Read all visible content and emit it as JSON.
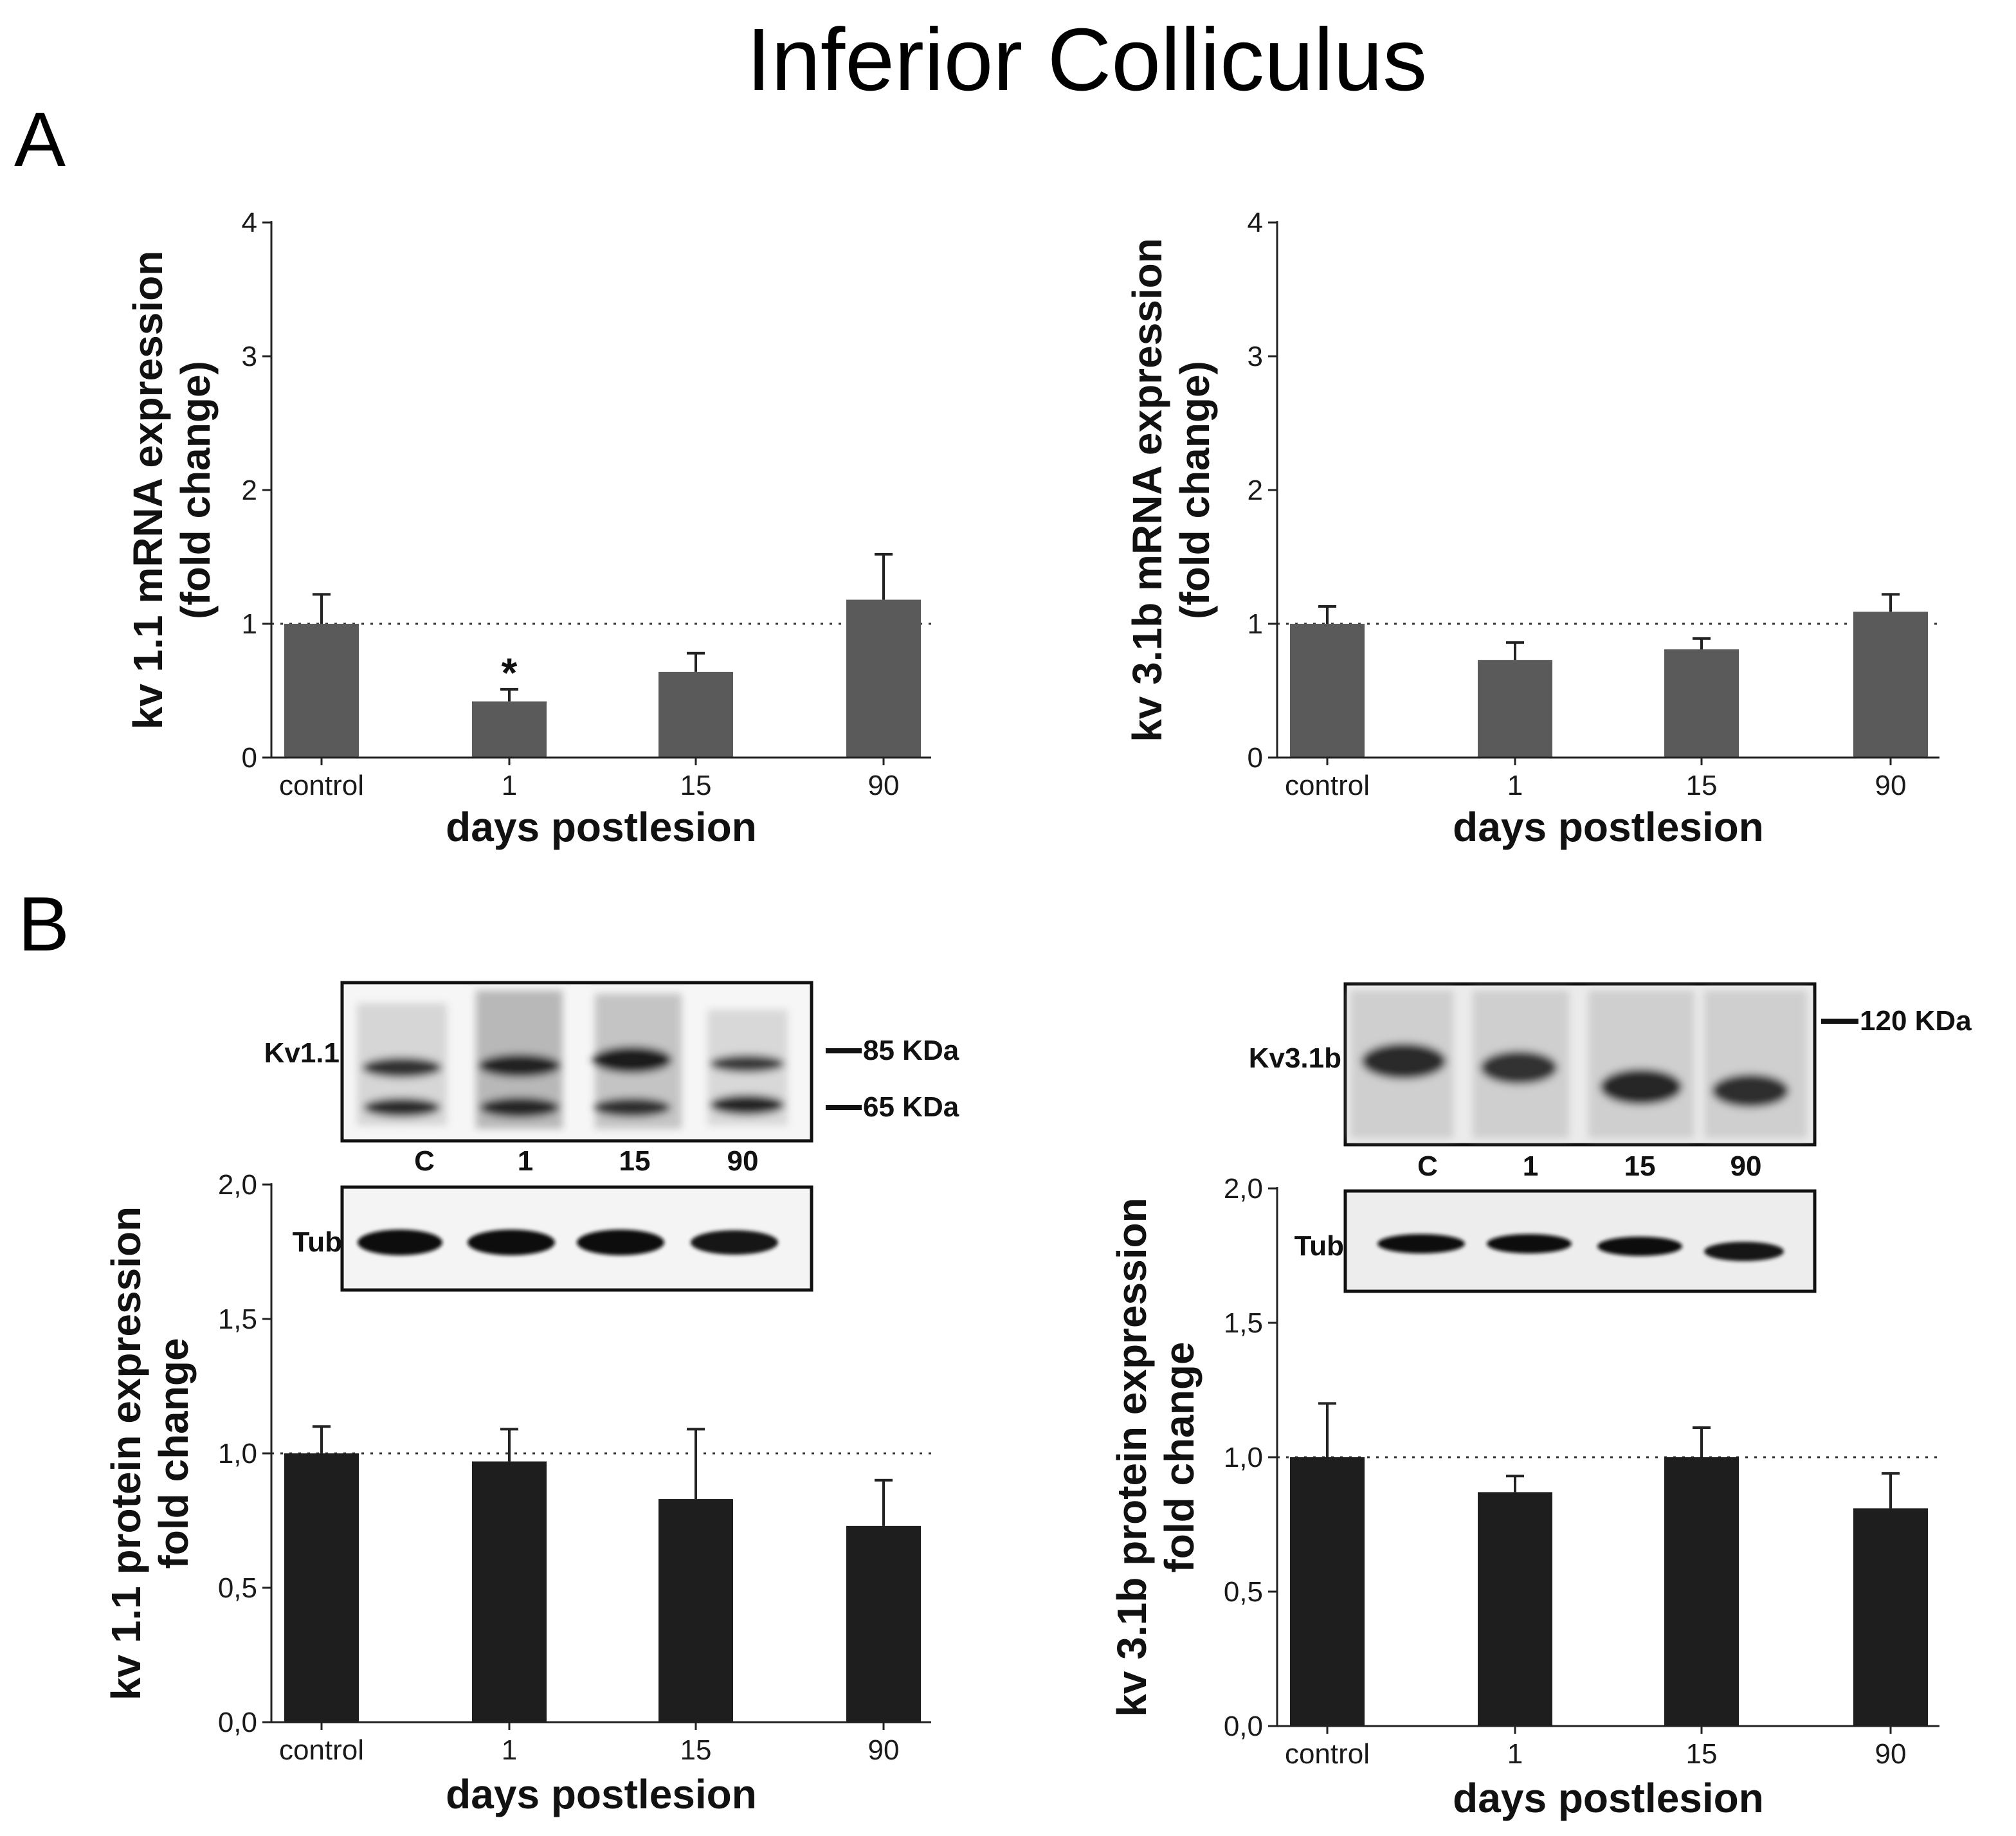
{
  "figure_title": "Inferior Colliculus",
  "panels": {
    "A": "A",
    "B": "B"
  },
  "chart_data": [
    {
      "type": "bar",
      "panel": "A",
      "ylabel_line1": "kv 1.1 mRNA expression",
      "ylabel_line2": "(fold change)",
      "xlabel": "days postlesion",
      "categories": [
        "control",
        "1",
        "15",
        "90"
      ],
      "values": [
        1.0,
        0.42,
        0.64,
        1.18
      ],
      "errors": [
        0.22,
        0.09,
        0.14,
        0.34
      ],
      "significance": [
        "",
        "*",
        "",
        ""
      ],
      "yticks": [
        "0",
        "1",
        "2",
        "3",
        "4"
      ],
      "ylim": [
        0,
        4
      ],
      "reference_line": 1.0,
      "bar_color": "#5a5a5a"
    },
    {
      "type": "bar",
      "panel": "A",
      "ylabel_line1": "kv 3.1b mRNA expression",
      "ylabel_line2": "(fold change)",
      "xlabel": "days postlesion",
      "categories": [
        "control",
        "1",
        "15",
        "90"
      ],
      "values": [
        1.0,
        0.73,
        0.81,
        1.09
      ],
      "errors": [
        0.13,
        0.13,
        0.08,
        0.13
      ],
      "significance": [
        "",
        "",
        "",
        ""
      ],
      "yticks": [
        "0",
        "1",
        "2",
        "3",
        "4"
      ],
      "ylim": [
        0,
        4
      ],
      "reference_line": 1.0,
      "bar_color": "#5a5a5a"
    },
    {
      "type": "bar",
      "panel": "B",
      "ylabel_line1": "kv 1.1 protein expression",
      "ylabel_line2": "fold change",
      "xlabel": "days postlesion",
      "categories": [
        "control",
        "1",
        "15",
        "90"
      ],
      "values": [
        1.0,
        0.97,
        0.83,
        0.73
      ],
      "errors": [
        0.1,
        0.12,
        0.26,
        0.17
      ],
      "significance": [
        "",
        "",
        "",
        ""
      ],
      "yticks": [
        "0,0",
        "0,5",
        "1,0",
        "1,5",
        "2,0"
      ],
      "ylim": [
        0,
        2
      ],
      "reference_line": 1.0,
      "bar_color": "#1e1e1e"
    },
    {
      "type": "bar",
      "panel": "B",
      "ylabel_line1": "kv 3.1b protein expression",
      "ylabel_line2": "fold change",
      "xlabel": "days postlesion",
      "categories": [
        "control",
        "1",
        "15",
        "90"
      ],
      "values": [
        1.0,
        0.87,
        1.0,
        0.81
      ],
      "errors": [
        0.2,
        0.06,
        0.11,
        0.13
      ],
      "significance": [
        "",
        "",
        "",
        ""
      ],
      "yticks": [
        "0,0",
        "0,5",
        "1,0",
        "1,5",
        "2,0"
      ],
      "ylim": [
        0,
        2
      ],
      "reference_line": 1.0,
      "bar_color": "#1e1e1e"
    }
  ],
  "blots": {
    "kv11": {
      "protein_label": "Kv1.1",
      "marker_85": "85 KDa",
      "marker_65": "65 KDa",
      "lanes": [
        "C",
        "1",
        "15",
        "90"
      ],
      "loading_label": "Tub"
    },
    "kv31b": {
      "protein_label": "Kv3.1b",
      "marker_120": "120 KDa",
      "lanes": [
        "C",
        "1",
        "15",
        "90"
      ],
      "loading_label": "Tub"
    }
  }
}
